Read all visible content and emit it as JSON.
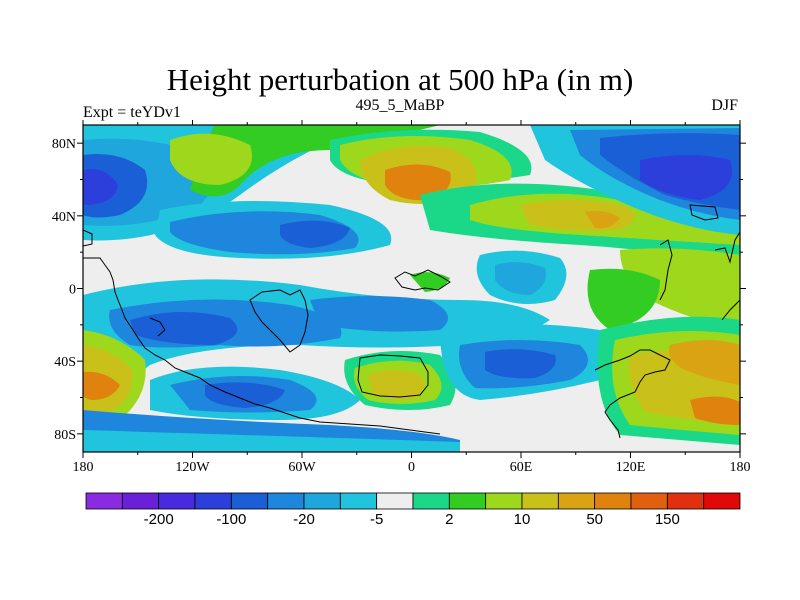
{
  "title": "Height perturbation at 500 hPa (in m)",
  "subtitle_left": "Expt = teYDv1",
  "subtitle_center": "495_5_MaBP",
  "subtitle_right": "DJF",
  "lon_ticks": [
    {
      "lon": -180,
      "label": "180"
    },
    {
      "lon": -120,
      "label": "120W"
    },
    {
      "lon": -60,
      "label": "60W"
    },
    {
      "lon": 0,
      "label": "0"
    },
    {
      "lon": 60,
      "label": "60E"
    },
    {
      "lon": 120,
      "label": "120E"
    },
    {
      "lon": 180,
      "label": "180"
    }
  ],
  "lat_ticks": [
    {
      "lat": 80,
      "label": "80N"
    },
    {
      "lat": 40,
      "label": "40N"
    },
    {
      "lat": 0,
      "label": "0"
    },
    {
      "lat": -40,
      "label": "40S"
    },
    {
      "lat": -80,
      "label": "80S"
    }
  ],
  "colorbar": {
    "colors": [
      "#8a2be2",
      "#6a1fd8",
      "#4a2adf",
      "#2d3fdb",
      "#1b5fd6",
      "#1e86dc",
      "#1fa6dc",
      "#21c4dd",
      "#eeeeee",
      "#1ad888",
      "#33cc22",
      "#9dd81c",
      "#c9c11a",
      "#d9a314",
      "#e0820e",
      "#e06010",
      "#e03010",
      "#e00808"
    ],
    "labels": [
      {
        "after": 1,
        "text": "-200"
      },
      {
        "after": 3,
        "text": "-100"
      },
      {
        "after": 5,
        "text": "-20"
      },
      {
        "after": 7,
        "text": "-5"
      },
      {
        "after": 9,
        "text": "2"
      },
      {
        "after": 11,
        "text": "10"
      },
      {
        "after": 13,
        "text": "50"
      },
      {
        "after": 15,
        "text": "150"
      }
    ]
  }
}
